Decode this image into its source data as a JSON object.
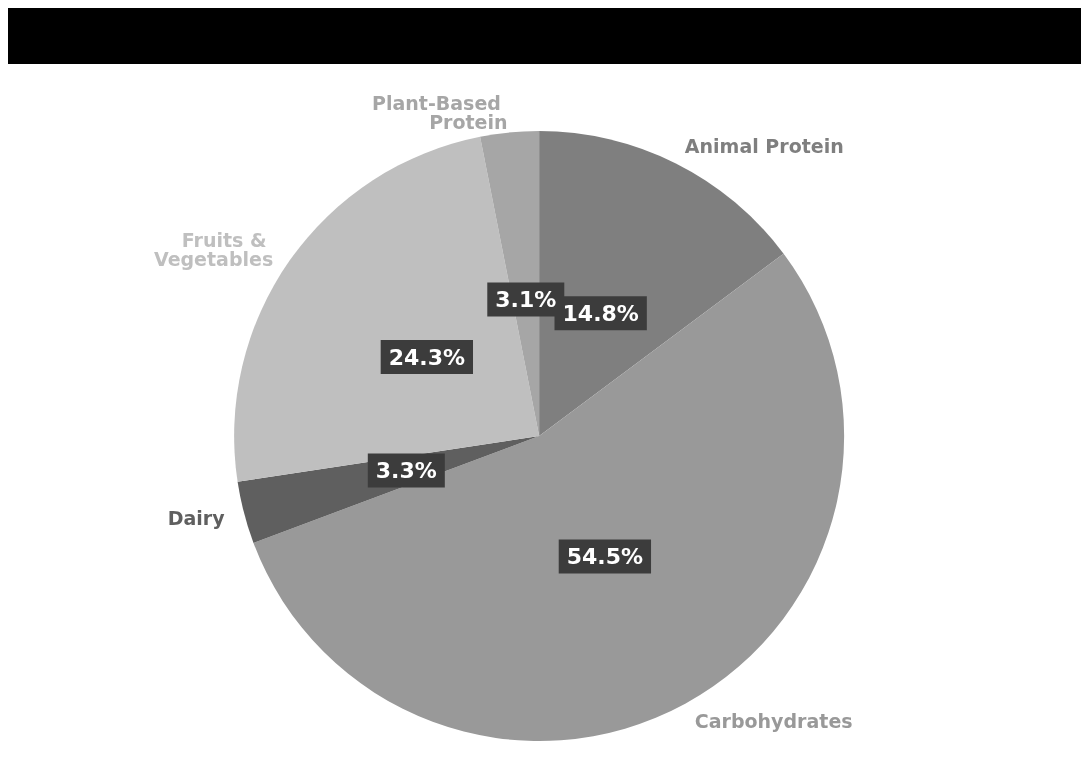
{
  "chart_data": {
    "type": "pie",
    "categories": [
      "Animal Protein",
      "Carbohydrates",
      "Dairy",
      "Fruits & Vegetables",
      "Plant-Based Protein"
    ],
    "values": [
      14.8,
      54.5,
      3.3,
      24.3,
      3.1
    ],
    "colors": [
      "#7f7f7f",
      "#999999",
      "#5f5f5f",
      "#bfbfbf",
      "#a6a6a6"
    ],
    "value_labels": [
      "14.8%",
      "54.5%",
      "3.3%",
      "24.3%",
      "3.1%"
    ]
  }
}
